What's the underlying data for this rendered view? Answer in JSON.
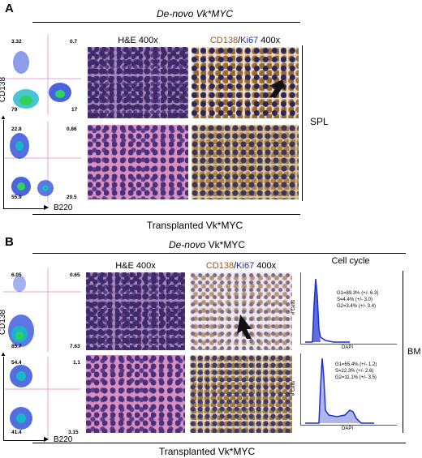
{
  "panelA": {
    "letter": "A",
    "top_header": "De-novo Vk*MYC",
    "bottom_header": "Transplanted Vk*MYC",
    "he_label": "H&E 400x",
    "ihc_label_cd": "CD138",
    "ihc_label_sep": "/",
    "ihc_label_ki": "Ki67",
    "ihc_label_mag": " 400x",
    "side_label": "SPL",
    "y_axis": "CD138",
    "x_axis": "B220",
    "flow_top": {
      "tl": "3.32",
      "tr": "0.7",
      "bl": "79",
      "br": "17"
    },
    "flow_bottom": {
      "tl": "22.8",
      "tr": "0.86",
      "bl": "55.9",
      "br": "20.5"
    }
  },
  "panelB": {
    "letter": "B",
    "top_header_it": "De-novo",
    "top_header_rest": " Vk*MYC",
    "bottom_header": "Transplanted Vk*MYC",
    "he_label": "H&E 400x",
    "ihc_label_cd": "CD138",
    "ihc_label_sep": "/",
    "ihc_label_ki": "Ki67",
    "ihc_label_mag": " 400x",
    "cell_cycle_label": "Cell cycle",
    "side_label": "BM",
    "y_axis": "CD138",
    "x_axis": "B220",
    "flow_top": {
      "tl": "6.05",
      "tr": "0.65",
      "bl": "85.7",
      "br": "7.63"
    },
    "flow_bottom": {
      "tl": "54.4",
      "tr": "1.1",
      "bl": "41.4",
      "br": "3.15"
    },
    "hist_top": {
      "g1": "G1=89.3% (+/- 6.3)",
      "s": "S=4.4% (+/- 3.0)",
      "g2": "G2=3.4% (+/- 3.4)",
      "ylabel": "# Cells",
      "xlabel": "DAPI"
    },
    "hist_bottom": {
      "g1": "G1=65.4% (+/- 1.2)",
      "s": "S=22.3% (+/- 2.6)",
      "g2": "G2=11.1% (+/- 3.5)",
      "ylabel": "# Cells",
      "xlabel": "DAPI"
    }
  },
  "colors": {
    "flow_blue": "#1a3dd6",
    "flow_cyan": "#19b6c9",
    "flow_green": "#2fd35a",
    "gate": "#e6a6d6",
    "hist_blue": "#1b2fcf"
  }
}
